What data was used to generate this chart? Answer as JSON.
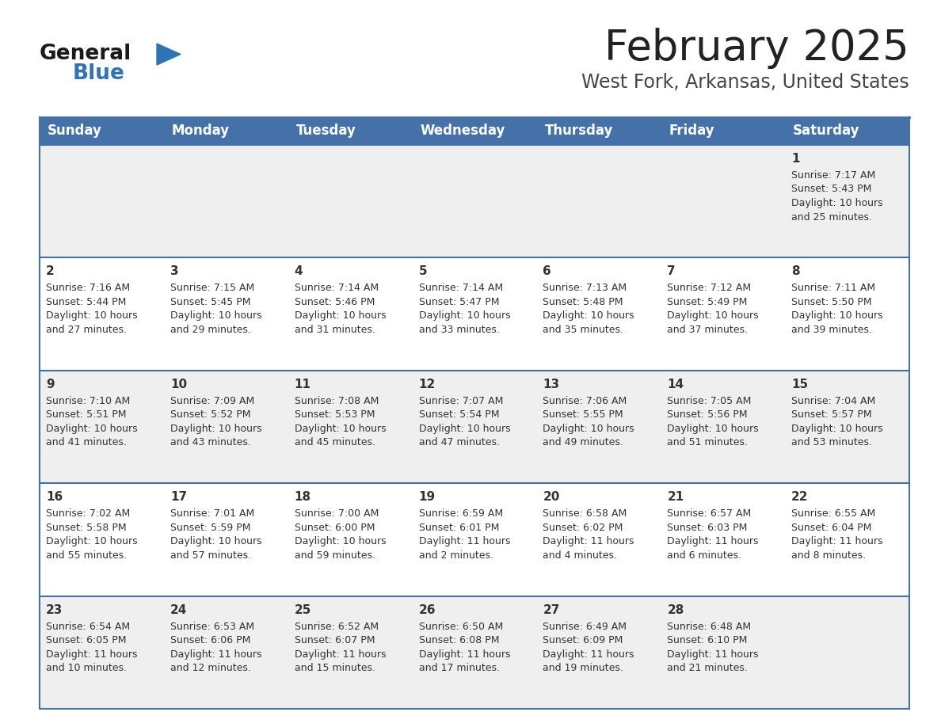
{
  "title": "February 2025",
  "subtitle": "West Fork, Arkansas, United States",
  "days_of_week": [
    "Sunday",
    "Monday",
    "Tuesday",
    "Wednesday",
    "Thursday",
    "Friday",
    "Saturday"
  ],
  "header_bg": "#4472a8",
  "header_text": "#ffffff",
  "row_bg_even": "#efefef",
  "row_bg_odd": "#ffffff",
  "cell_border": "#4472a8",
  "day_num_color": "#333333",
  "info_text_color": "#333333",
  "title_color": "#222222",
  "subtitle_color": "#444444",
  "logo_general_color": "#1a1a1a",
  "logo_blue_color": "#2e74b5",
  "calendar_data": [
    {
      "day": 1,
      "col": 6,
      "row": 0,
      "sunrise": "7:17 AM",
      "sunset": "5:43 PM",
      "daylight_h": "10 hours",
      "daylight_m": "and 25 minutes."
    },
    {
      "day": 2,
      "col": 0,
      "row": 1,
      "sunrise": "7:16 AM",
      "sunset": "5:44 PM",
      "daylight_h": "10 hours",
      "daylight_m": "and 27 minutes."
    },
    {
      "day": 3,
      "col": 1,
      "row": 1,
      "sunrise": "7:15 AM",
      "sunset": "5:45 PM",
      "daylight_h": "10 hours",
      "daylight_m": "and 29 minutes."
    },
    {
      "day": 4,
      "col": 2,
      "row": 1,
      "sunrise": "7:14 AM",
      "sunset": "5:46 PM",
      "daylight_h": "10 hours",
      "daylight_m": "and 31 minutes."
    },
    {
      "day": 5,
      "col": 3,
      "row": 1,
      "sunrise": "7:14 AM",
      "sunset": "5:47 PM",
      "daylight_h": "10 hours",
      "daylight_m": "and 33 minutes."
    },
    {
      "day": 6,
      "col": 4,
      "row": 1,
      "sunrise": "7:13 AM",
      "sunset": "5:48 PM",
      "daylight_h": "10 hours",
      "daylight_m": "and 35 minutes."
    },
    {
      "day": 7,
      "col": 5,
      "row": 1,
      "sunrise": "7:12 AM",
      "sunset": "5:49 PM",
      "daylight_h": "10 hours",
      "daylight_m": "and 37 minutes."
    },
    {
      "day": 8,
      "col": 6,
      "row": 1,
      "sunrise": "7:11 AM",
      "sunset": "5:50 PM",
      "daylight_h": "10 hours",
      "daylight_m": "and 39 minutes."
    },
    {
      "day": 9,
      "col": 0,
      "row": 2,
      "sunrise": "7:10 AM",
      "sunset": "5:51 PM",
      "daylight_h": "10 hours",
      "daylight_m": "and 41 minutes."
    },
    {
      "day": 10,
      "col": 1,
      "row": 2,
      "sunrise": "7:09 AM",
      "sunset": "5:52 PM",
      "daylight_h": "10 hours",
      "daylight_m": "and 43 minutes."
    },
    {
      "day": 11,
      "col": 2,
      "row": 2,
      "sunrise": "7:08 AM",
      "sunset": "5:53 PM",
      "daylight_h": "10 hours",
      "daylight_m": "and 45 minutes."
    },
    {
      "day": 12,
      "col": 3,
      "row": 2,
      "sunrise": "7:07 AM",
      "sunset": "5:54 PM",
      "daylight_h": "10 hours",
      "daylight_m": "and 47 minutes."
    },
    {
      "day": 13,
      "col": 4,
      "row": 2,
      "sunrise": "7:06 AM",
      "sunset": "5:55 PM",
      "daylight_h": "10 hours",
      "daylight_m": "and 49 minutes."
    },
    {
      "day": 14,
      "col": 5,
      "row": 2,
      "sunrise": "7:05 AM",
      "sunset": "5:56 PM",
      "daylight_h": "10 hours",
      "daylight_m": "and 51 minutes."
    },
    {
      "day": 15,
      "col": 6,
      "row": 2,
      "sunrise": "7:04 AM",
      "sunset": "5:57 PM",
      "daylight_h": "10 hours",
      "daylight_m": "and 53 minutes."
    },
    {
      "day": 16,
      "col": 0,
      "row": 3,
      "sunrise": "7:02 AM",
      "sunset": "5:58 PM",
      "daylight_h": "10 hours",
      "daylight_m": "and 55 minutes."
    },
    {
      "day": 17,
      "col": 1,
      "row": 3,
      "sunrise": "7:01 AM",
      "sunset": "5:59 PM",
      "daylight_h": "10 hours",
      "daylight_m": "and 57 minutes."
    },
    {
      "day": 18,
      "col": 2,
      "row": 3,
      "sunrise": "7:00 AM",
      "sunset": "6:00 PM",
      "daylight_h": "10 hours",
      "daylight_m": "and 59 minutes."
    },
    {
      "day": 19,
      "col": 3,
      "row": 3,
      "sunrise": "6:59 AM",
      "sunset": "6:01 PM",
      "daylight_h": "11 hours",
      "daylight_m": "and 2 minutes."
    },
    {
      "day": 20,
      "col": 4,
      "row": 3,
      "sunrise": "6:58 AM",
      "sunset": "6:02 PM",
      "daylight_h": "11 hours",
      "daylight_m": "and 4 minutes."
    },
    {
      "day": 21,
      "col": 5,
      "row": 3,
      "sunrise": "6:57 AM",
      "sunset": "6:03 PM",
      "daylight_h": "11 hours",
      "daylight_m": "and 6 minutes."
    },
    {
      "day": 22,
      "col": 6,
      "row": 3,
      "sunrise": "6:55 AM",
      "sunset": "6:04 PM",
      "daylight_h": "11 hours",
      "daylight_m": "and 8 minutes."
    },
    {
      "day": 23,
      "col": 0,
      "row": 4,
      "sunrise": "6:54 AM",
      "sunset": "6:05 PM",
      "daylight_h": "11 hours",
      "daylight_m": "and 10 minutes."
    },
    {
      "day": 24,
      "col": 1,
      "row": 4,
      "sunrise": "6:53 AM",
      "sunset": "6:06 PM",
      "daylight_h": "11 hours",
      "daylight_m": "and 12 minutes."
    },
    {
      "day": 25,
      "col": 2,
      "row": 4,
      "sunrise": "6:52 AM",
      "sunset": "6:07 PM",
      "daylight_h": "11 hours",
      "daylight_m": "and 15 minutes."
    },
    {
      "day": 26,
      "col": 3,
      "row": 4,
      "sunrise": "6:50 AM",
      "sunset": "6:08 PM",
      "daylight_h": "11 hours",
      "daylight_m": "and 17 minutes."
    },
    {
      "day": 27,
      "col": 4,
      "row": 4,
      "sunrise": "6:49 AM",
      "sunset": "6:09 PM",
      "daylight_h": "11 hours",
      "daylight_m": "and 19 minutes."
    },
    {
      "day": 28,
      "col": 5,
      "row": 4,
      "sunrise": "6:48 AM",
      "sunset": "6:10 PM",
      "daylight_h": "11 hours",
      "daylight_m": "and 21 minutes."
    }
  ]
}
